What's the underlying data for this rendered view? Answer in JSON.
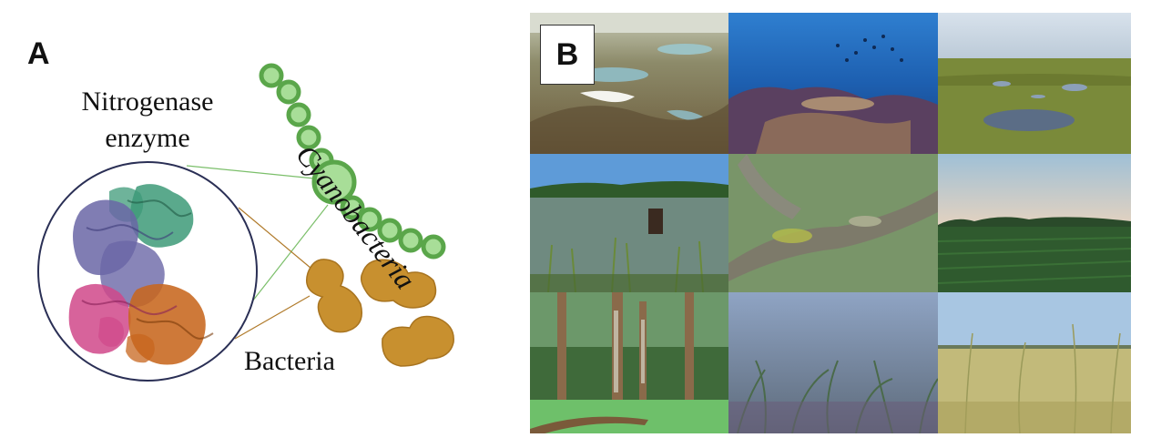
{
  "panel_a": {
    "label": "A",
    "enzyme_label_line1": "Nitrogenase",
    "enzyme_label_line2": "enzyme",
    "cyanobacteria_label": "Cyanobacteria",
    "bacteria_label": "Bacteria"
  },
  "panel_b": {
    "label": "B",
    "habitat_photos": [
      "tundra-lakes-photo",
      "coral-reef-photo",
      "bog-wetland-photo",
      "pond-marsh-photo",
      "lichen-branch-photo",
      "crop-field-photo",
      "mossy-forest-photo",
      "seagrass-photo",
      "grassland-photo"
    ]
  },
  "colors": {
    "cyano_green": "#8fd17e",
    "cyano_stroke": "#5aa64a",
    "bacteria_ochre": "#c8902f",
    "protein_green": "#3d9a78",
    "protein_purple": "#6a66a6",
    "protein_pink": "#d0488a",
    "protein_orange": "#c7661e"
  }
}
